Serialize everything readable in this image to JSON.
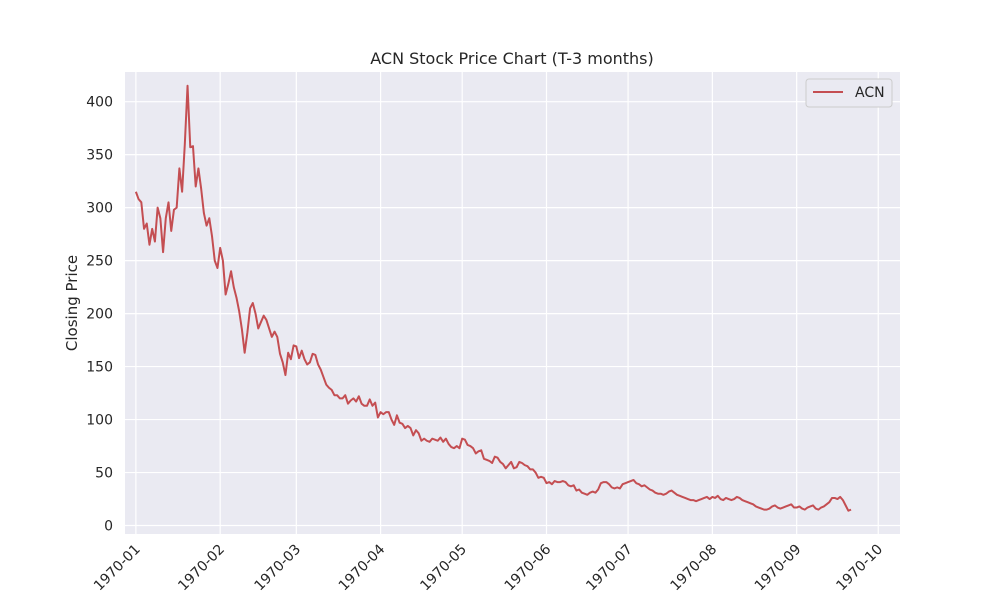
{
  "chart_data": {
    "type": "line",
    "title": "ACN Stock Price Chart (T-3 months)",
    "xlabel": "",
    "ylabel": "Closing Price",
    "ylim": [
      -8,
      428
    ],
    "xlim": [
      "1969-12-28",
      "1970-10-09"
    ],
    "grid": true,
    "legend_position": "top-right",
    "x_ticks": [
      "1970-01-01",
      "1970-02-01",
      "1970-03-01",
      "1970-04-01",
      "1970-05-01",
      "1970-06-01",
      "1970-07-01",
      "1970-08-01",
      "1970-09-01",
      "1970-10-01"
    ],
    "x_tick_labels": [
      "1970-01",
      "1970-02",
      "1970-03",
      "1970-04",
      "1970-05",
      "1970-06",
      "1970-07",
      "1970-08",
      "1970-09",
      "1970-10"
    ],
    "y_ticks": [
      0,
      50,
      100,
      150,
      200,
      250,
      300,
      350,
      400
    ],
    "y_tick_labels": [
      "0",
      "50",
      "100",
      "150",
      "200",
      "250",
      "300",
      "350",
      "400"
    ],
    "colors": {
      "background": "#eaeaf2",
      "grid": "#ffffff",
      "line": "#c44e52"
    },
    "series": [
      {
        "name": "ACN",
        "color": "#c44e52",
        "points": [
          [
            "1970-01-01",
            315
          ],
          [
            "1970-01-02",
            308
          ],
          [
            "1970-01-03",
            305
          ],
          [
            "1970-01-04",
            280
          ],
          [
            "1970-01-05",
            285
          ],
          [
            "1970-01-06",
            265
          ],
          [
            "1970-01-07",
            280
          ],
          [
            "1970-01-08",
            268
          ],
          [
            "1970-01-09",
            300
          ],
          [
            "1970-01-10",
            290
          ],
          [
            "1970-01-11",
            258
          ],
          [
            "1970-01-12",
            290
          ],
          [
            "1970-01-13",
            305
          ],
          [
            "1970-01-14",
            278
          ],
          [
            "1970-01-15",
            298
          ],
          [
            "1970-01-16",
            300
          ],
          [
            "1970-01-17",
            337
          ],
          [
            "1970-01-18",
            315
          ],
          [
            "1970-01-19",
            360
          ],
          [
            "1970-01-20",
            415
          ],
          [
            "1970-01-21",
            357
          ],
          [
            "1970-01-22",
            358
          ],
          [
            "1970-01-23",
            320
          ],
          [
            "1970-01-24",
            337
          ],
          [
            "1970-01-25",
            318
          ],
          [
            "1970-01-26",
            295
          ],
          [
            "1970-01-27",
            283
          ],
          [
            "1970-01-28",
            290
          ],
          [
            "1970-01-29",
            273
          ],
          [
            "1970-01-30",
            250
          ],
          [
            "1970-01-31",
            243
          ],
          [
            "1970-02-01",
            262
          ],
          [
            "1970-02-02",
            250
          ],
          [
            "1970-02-03",
            218
          ],
          [
            "1970-02-04",
            228
          ],
          [
            "1970-02-05",
            240
          ],
          [
            "1970-02-06",
            225
          ],
          [
            "1970-02-07",
            215
          ],
          [
            "1970-02-08",
            202
          ],
          [
            "1970-02-09",
            185
          ],
          [
            "1970-02-10",
            163
          ],
          [
            "1970-02-11",
            182
          ],
          [
            "1970-02-12",
            205
          ],
          [
            "1970-02-13",
            210
          ],
          [
            "1970-02-14",
            200
          ],
          [
            "1970-02-15",
            186
          ],
          [
            "1970-02-16",
            192
          ],
          [
            "1970-02-17",
            198
          ],
          [
            "1970-02-18",
            194
          ],
          [
            "1970-02-19",
            186
          ],
          [
            "1970-02-20",
            178
          ],
          [
            "1970-02-21",
            183
          ],
          [
            "1970-02-22",
            178
          ],
          [
            "1970-02-23",
            162
          ],
          [
            "1970-02-24",
            154
          ],
          [
            "1970-02-25",
            142
          ],
          [
            "1970-02-26",
            163
          ],
          [
            "1970-02-27",
            157
          ],
          [
            "1970-02-28",
            170
          ],
          [
            "1970-03-01",
            169
          ],
          [
            "1970-03-02",
            158
          ],
          [
            "1970-03-03",
            165
          ],
          [
            "1970-03-04",
            157
          ],
          [
            "1970-03-05",
            152
          ],
          [
            "1970-03-06",
            154
          ],
          [
            "1970-03-07",
            162
          ],
          [
            "1970-03-08",
            161
          ],
          [
            "1970-03-09",
            152
          ],
          [
            "1970-03-10",
            147
          ],
          [
            "1970-03-11",
            140
          ],
          [
            "1970-03-12",
            133
          ],
          [
            "1970-03-13",
            130
          ],
          [
            "1970-03-14",
            128
          ],
          [
            "1970-03-15",
            123
          ],
          [
            "1970-03-16",
            123
          ],
          [
            "1970-03-17",
            120
          ],
          [
            "1970-03-18",
            120
          ],
          [
            "1970-03-19",
            123
          ],
          [
            "1970-03-20",
            115
          ],
          [
            "1970-03-21",
            118
          ],
          [
            "1970-03-22",
            120
          ],
          [
            "1970-03-23",
            117
          ],
          [
            "1970-03-24",
            122
          ],
          [
            "1970-03-25",
            115
          ],
          [
            "1970-03-26",
            113
          ],
          [
            "1970-03-27",
            113
          ],
          [
            "1970-03-28",
            119
          ],
          [
            "1970-03-29",
            113
          ],
          [
            "1970-03-30",
            116
          ],
          [
            "1970-03-31",
            102
          ],
          [
            "1970-04-01",
            107
          ],
          [
            "1970-04-02",
            105
          ],
          [
            "1970-04-03",
            107
          ],
          [
            "1970-04-04",
            107
          ],
          [
            "1970-04-05",
            100
          ],
          [
            "1970-04-06",
            95
          ],
          [
            "1970-04-07",
            104
          ],
          [
            "1970-04-08",
            97
          ],
          [
            "1970-04-09",
            96
          ],
          [
            "1970-04-10",
            92
          ],
          [
            "1970-04-11",
            94
          ],
          [
            "1970-04-12",
            92
          ],
          [
            "1970-04-13",
            85
          ],
          [
            "1970-04-14",
            90
          ],
          [
            "1970-04-15",
            87
          ],
          [
            "1970-04-16",
            80
          ],
          [
            "1970-04-17",
            82
          ],
          [
            "1970-04-18",
            80
          ],
          [
            "1970-04-19",
            79
          ],
          [
            "1970-04-20",
            82
          ],
          [
            "1970-04-21",
            81
          ],
          [
            "1970-04-22",
            80
          ],
          [
            "1970-04-23",
            83
          ],
          [
            "1970-04-24",
            79
          ],
          [
            "1970-04-25",
            82
          ],
          [
            "1970-04-26",
            77
          ],
          [
            "1970-04-27",
            74
          ],
          [
            "1970-04-28",
            73
          ],
          [
            "1970-04-29",
            75
          ],
          [
            "1970-04-30",
            73
          ],
          [
            "1970-05-01",
            82
          ],
          [
            "1970-05-02",
            81
          ],
          [
            "1970-05-03",
            76
          ],
          [
            "1970-05-04",
            75
          ],
          [
            "1970-05-05",
            73
          ],
          [
            "1970-05-06",
            68
          ],
          [
            "1970-05-07",
            70
          ],
          [
            "1970-05-08",
            71
          ],
          [
            "1970-05-09",
            63
          ],
          [
            "1970-05-10",
            62
          ],
          [
            "1970-05-11",
            61
          ],
          [
            "1970-05-12",
            59
          ],
          [
            "1970-05-13",
            65
          ],
          [
            "1970-05-14",
            64
          ],
          [
            "1970-05-15",
            60
          ],
          [
            "1970-05-16",
            58
          ],
          [
            "1970-05-17",
            54
          ],
          [
            "1970-05-18",
            57
          ],
          [
            "1970-05-19",
            60
          ],
          [
            "1970-05-20",
            54
          ],
          [
            "1970-05-21",
            55
          ],
          [
            "1970-05-22",
            60
          ],
          [
            "1970-05-23",
            59
          ],
          [
            "1970-05-24",
            57
          ],
          [
            "1970-05-25",
            56
          ],
          [
            "1970-05-26",
            53
          ],
          [
            "1970-05-27",
            53
          ],
          [
            "1970-05-28",
            50
          ],
          [
            "1970-05-29",
            45
          ],
          [
            "1970-05-30",
            46
          ],
          [
            "1970-05-31",
            45
          ],
          [
            "1970-06-01",
            40
          ],
          [
            "1970-06-02",
            41
          ],
          [
            "1970-06-03",
            39
          ],
          [
            "1970-06-04",
            42
          ],
          [
            "1970-06-05",
            41
          ],
          [
            "1970-06-06",
            41
          ],
          [
            "1970-06-07",
            42
          ],
          [
            "1970-06-08",
            41
          ],
          [
            "1970-06-09",
            38
          ],
          [
            "1970-06-10",
            37
          ],
          [
            "1970-06-11",
            38
          ],
          [
            "1970-06-12",
            33
          ],
          [
            "1970-06-13",
            34
          ],
          [
            "1970-06-14",
            31
          ],
          [
            "1970-06-15",
            30
          ],
          [
            "1970-06-16",
            29
          ],
          [
            "1970-06-17",
            31
          ],
          [
            "1970-06-18",
            32
          ],
          [
            "1970-06-19",
            31
          ],
          [
            "1970-06-20",
            34
          ],
          [
            "1970-06-21",
            40
          ],
          [
            "1970-06-22",
            41
          ],
          [
            "1970-06-23",
            41
          ],
          [
            "1970-06-24",
            39
          ],
          [
            "1970-06-25",
            36
          ],
          [
            "1970-06-26",
            35
          ],
          [
            "1970-06-27",
            36
          ],
          [
            "1970-06-28",
            35
          ],
          [
            "1970-06-29",
            39
          ],
          [
            "1970-06-30",
            40
          ],
          [
            "1970-07-01",
            41
          ],
          [
            "1970-07-02",
            42
          ],
          [
            "1970-07-03",
            43
          ],
          [
            "1970-07-04",
            40
          ],
          [
            "1970-07-05",
            39
          ],
          [
            "1970-07-06",
            37
          ],
          [
            "1970-07-07",
            38
          ],
          [
            "1970-07-08",
            36
          ],
          [
            "1970-07-09",
            34
          ],
          [
            "1970-07-10",
            33
          ],
          [
            "1970-07-11",
            31
          ],
          [
            "1970-07-12",
            30
          ],
          [
            "1970-07-13",
            30
          ],
          [
            "1970-07-14",
            29
          ],
          [
            "1970-07-15",
            30
          ],
          [
            "1970-07-16",
            32
          ],
          [
            "1970-07-17",
            33
          ],
          [
            "1970-07-18",
            31
          ],
          [
            "1970-07-19",
            29
          ],
          [
            "1970-07-20",
            28
          ],
          [
            "1970-07-21",
            27
          ],
          [
            "1970-07-22",
            26
          ],
          [
            "1970-07-23",
            25
          ],
          [
            "1970-07-24",
            24
          ],
          [
            "1970-07-25",
            24
          ],
          [
            "1970-07-26",
            23
          ],
          [
            "1970-07-27",
            24
          ],
          [
            "1970-07-28",
            25
          ],
          [
            "1970-07-29",
            26
          ],
          [
            "1970-07-30",
            27
          ],
          [
            "1970-07-31",
            25
          ],
          [
            "1970-08-01",
            27
          ],
          [
            "1970-08-02",
            26
          ],
          [
            "1970-08-03",
            28
          ],
          [
            "1970-08-04",
            25
          ],
          [
            "1970-08-05",
            24
          ],
          [
            "1970-08-06",
            26
          ],
          [
            "1970-08-07",
            25
          ],
          [
            "1970-08-08",
            24
          ],
          [
            "1970-08-09",
            25
          ],
          [
            "1970-08-10",
            27
          ],
          [
            "1970-08-11",
            26
          ],
          [
            "1970-08-12",
            24
          ],
          [
            "1970-08-13",
            23
          ],
          [
            "1970-08-14",
            22
          ],
          [
            "1970-08-15",
            21
          ],
          [
            "1970-08-16",
            20
          ],
          [
            "1970-08-17",
            18
          ],
          [
            "1970-08-18",
            17
          ],
          [
            "1970-08-19",
            16
          ],
          [
            "1970-08-20",
            15
          ],
          [
            "1970-08-21",
            15
          ],
          [
            "1970-08-22",
            16
          ],
          [
            "1970-08-23",
            18
          ],
          [
            "1970-08-24",
            19
          ],
          [
            "1970-08-25",
            17
          ],
          [
            "1970-08-26",
            16
          ],
          [
            "1970-08-27",
            17
          ],
          [
            "1970-08-28",
            18
          ],
          [
            "1970-08-29",
            19
          ],
          [
            "1970-08-30",
            20
          ],
          [
            "1970-08-31",
            17
          ],
          [
            "1970-09-01",
            17
          ],
          [
            "1970-09-02",
            18
          ],
          [
            "1970-09-03",
            16
          ],
          [
            "1970-09-04",
            15
          ],
          [
            "1970-09-05",
            17
          ],
          [
            "1970-09-06",
            18
          ],
          [
            "1970-09-07",
            19
          ],
          [
            "1970-09-08",
            16
          ],
          [
            "1970-09-09",
            15
          ],
          [
            "1970-09-10",
            17
          ],
          [
            "1970-09-11",
            18
          ],
          [
            "1970-09-12",
            20
          ],
          [
            "1970-09-13",
            22
          ],
          [
            "1970-09-14",
            26
          ],
          [
            "1970-09-15",
            26
          ],
          [
            "1970-09-16",
            25
          ],
          [
            "1970-09-17",
            27
          ],
          [
            "1970-09-18",
            24
          ],
          [
            "1970-09-19",
            19
          ],
          [
            "1970-09-20",
            14
          ],
          [
            "1970-09-21",
            15
          ]
        ]
      }
    ]
  }
}
